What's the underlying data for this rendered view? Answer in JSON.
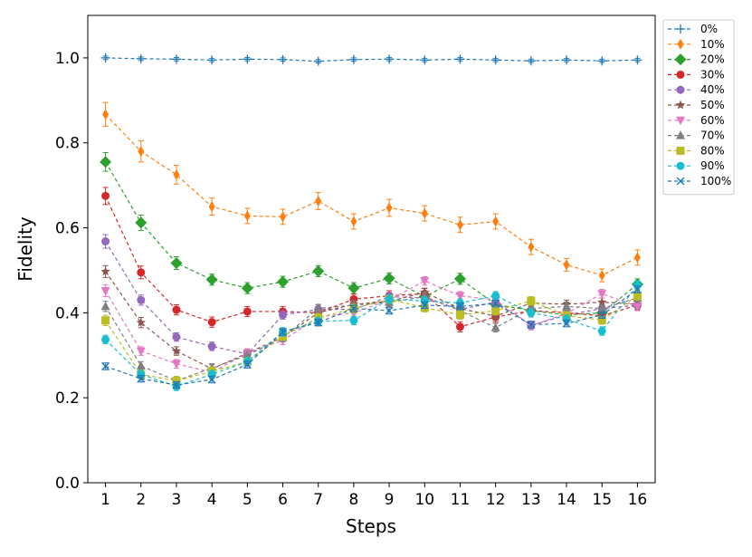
{
  "chart_data": {
    "type": "line",
    "title": "",
    "xlabel": "Steps",
    "ylabel": "Fidelity",
    "x": [
      1,
      2,
      3,
      4,
      5,
      6,
      7,
      8,
      9,
      10,
      11,
      12,
      13,
      14,
      15,
      16
    ],
    "xticks": [
      "1",
      "2",
      "3",
      "4",
      "5",
      "6",
      "7",
      "8",
      "9",
      "10",
      "11",
      "12",
      "13",
      "14",
      "15",
      "16"
    ],
    "xlim": [
      0.5,
      16.5
    ],
    "ylim": [
      0.0,
      1.1
    ],
    "yticks": [
      0.0,
      0.2,
      0.4,
      0.6,
      0.8,
      1.0
    ],
    "ytick_labels": [
      "0.0",
      "0.2",
      "0.4",
      "0.6",
      "0.8",
      "1.0"
    ],
    "grid": false,
    "legend_position": "top-right",
    "series": [
      {
        "name": "0%",
        "color": "#1f77b4",
        "marker": "plus",
        "values": [
          1.0,
          0.998,
          0.997,
          0.995,
          0.997,
          0.996,
          0.992,
          0.996,
          0.997,
          0.995,
          0.997,
          0.995,
          0.993,
          0.995,
          0.993,
          0.995
        ],
        "errors": [
          0.004,
          0.004,
          0.004,
          0.004,
          0.004,
          0.004,
          0.004,
          0.004,
          0.004,
          0.004,
          0.004,
          0.004,
          0.004,
          0.004,
          0.004,
          0.004
        ]
      },
      {
        "name": "10%",
        "color": "#ff7f0e",
        "marker": "diamond-thin",
        "values": [
          0.867,
          0.78,
          0.725,
          0.65,
          0.628,
          0.626,
          0.663,
          0.615,
          0.647,
          0.634,
          0.607,
          0.615,
          0.555,
          0.513,
          0.488,
          0.53
        ],
        "errors": [
          0.028,
          0.025,
          0.022,
          0.02,
          0.018,
          0.018,
          0.02,
          0.018,
          0.02,
          0.018,
          0.018,
          0.018,
          0.018,
          0.015,
          0.015,
          0.018
        ]
      },
      {
        "name": "20%",
        "color": "#2ca02c",
        "marker": "diamond",
        "values": [
          0.755,
          0.612,
          0.517,
          0.478,
          0.458,
          0.473,
          0.498,
          0.458,
          0.481,
          0.438,
          0.48,
          0.42,
          0.405,
          0.395,
          0.4,
          0.467
        ],
        "errors": [
          0.022,
          0.018,
          0.015,
          0.013,
          0.013,
          0.013,
          0.013,
          0.013,
          0.013,
          0.013,
          0.013,
          0.013,
          0.012,
          0.012,
          0.012,
          0.013
        ]
      },
      {
        "name": "30%",
        "color": "#d62728",
        "marker": "circle",
        "values": [
          0.675,
          0.495,
          0.407,
          0.378,
          0.403,
          0.403,
          0.4,
          0.432,
          0.44,
          0.445,
          0.367,
          0.39,
          0.405,
          0.4,
          0.393,
          0.418
        ],
        "errors": [
          0.02,
          0.015,
          0.012,
          0.012,
          0.012,
          0.012,
          0.012,
          0.012,
          0.012,
          0.012,
          0.012,
          0.012,
          0.012,
          0.012,
          0.012,
          0.012
        ]
      },
      {
        "name": "40%",
        "color": "#9467bd",
        "marker": "circle",
        "values": [
          0.568,
          0.43,
          0.343,
          0.321,
          0.303,
          0.395,
          0.408,
          0.408,
          0.438,
          0.435,
          0.408,
          0.425,
          0.37,
          0.395,
          0.41,
          0.418
        ],
        "errors": [
          0.016,
          0.012,
          0.01,
          0.01,
          0.01,
          0.01,
          0.01,
          0.01,
          0.01,
          0.01,
          0.01,
          0.01,
          0.01,
          0.01,
          0.01,
          0.01
        ]
      },
      {
        "name": "50%",
        "color": "#8c564b",
        "marker": "star",
        "values": [
          0.497,
          0.377,
          0.31,
          0.268,
          0.305,
          0.343,
          0.4,
          0.42,
          0.427,
          0.448,
          0.41,
          0.392,
          0.423,
          0.42,
          0.425,
          0.42
        ],
        "errors": [
          0.014,
          0.012,
          0.01,
          0.01,
          0.01,
          0.01,
          0.01,
          0.01,
          0.01,
          0.01,
          0.01,
          0.01,
          0.01,
          0.01,
          0.01,
          0.01
        ]
      },
      {
        "name": "60%",
        "color": "#e377c2",
        "marker": "triangle-down",
        "values": [
          0.452,
          0.31,
          0.28,
          0.26,
          0.305,
          0.335,
          0.39,
          0.4,
          0.43,
          0.475,
          0.44,
          0.43,
          0.37,
          0.398,
          0.445,
          0.415
        ],
        "errors": [
          0.014,
          0.01,
          0.01,
          0.01,
          0.01,
          0.01,
          0.01,
          0.01,
          0.01,
          0.01,
          0.01,
          0.01,
          0.01,
          0.01,
          0.01,
          0.01
        ]
      },
      {
        "name": "70%",
        "color": "#7f7f7f",
        "marker": "triangle-up",
        "values": [
          0.415,
          0.275,
          0.24,
          0.27,
          0.3,
          0.342,
          0.41,
          0.418,
          0.425,
          0.438,
          0.405,
          0.365,
          0.41,
          0.415,
          0.41,
          0.435
        ],
        "errors": [
          0.012,
          0.01,
          0.01,
          0.01,
          0.01,
          0.01,
          0.01,
          0.01,
          0.01,
          0.01,
          0.01,
          0.01,
          0.01,
          0.01,
          0.01,
          0.01
        ]
      },
      {
        "name": "80%",
        "color": "#bcbd22",
        "marker": "square",
        "values": [
          0.382,
          0.255,
          0.24,
          0.262,
          0.285,
          0.345,
          0.388,
          0.41,
          0.432,
          0.412,
          0.395,
          0.405,
          0.428,
          0.393,
          0.383,
          0.44
        ],
        "errors": [
          0.012,
          0.01,
          0.01,
          0.01,
          0.01,
          0.01,
          0.01,
          0.01,
          0.01,
          0.01,
          0.01,
          0.01,
          0.01,
          0.01,
          0.01,
          0.01
        ]
      },
      {
        "name": "90%",
        "color": "#17becf",
        "marker": "circle",
        "values": [
          0.337,
          0.255,
          0.227,
          0.255,
          0.285,
          0.355,
          0.38,
          0.382,
          0.432,
          0.428,
          0.423,
          0.44,
          0.4,
          0.385,
          0.357,
          0.465
        ],
        "errors": [
          0.01,
          0.01,
          0.01,
          0.01,
          0.01,
          0.01,
          0.01,
          0.01,
          0.01,
          0.01,
          0.01,
          0.01,
          0.01,
          0.01,
          0.01,
          0.01
        ]
      },
      {
        "name": "100%",
        "color": "#1f77b4",
        "marker": "x",
        "values": [
          0.274,
          0.245,
          0.23,
          0.243,
          0.278,
          0.355,
          0.377,
          0.41,
          0.405,
          0.418,
          0.415,
          0.422,
          0.372,
          0.375,
          0.395,
          0.455
        ],
        "errors": [
          0.008,
          0.008,
          0.008,
          0.008,
          0.008,
          0.008,
          0.008,
          0.008,
          0.008,
          0.008,
          0.008,
          0.008,
          0.008,
          0.008,
          0.008,
          0.008
        ]
      }
    ]
  }
}
